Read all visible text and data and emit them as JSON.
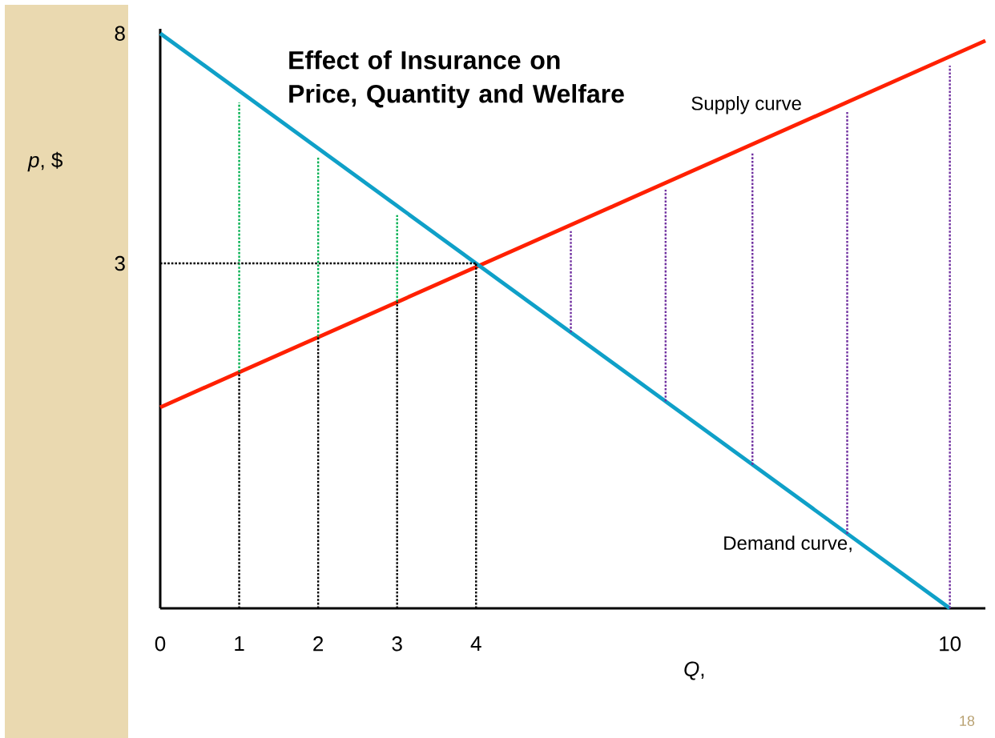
{
  "chart_data": {
    "type": "line",
    "title": "Effect of Insurance on Price, Quantity and Welfare",
    "xlabel": "*Q*,",
    "ylabel": "*p*, $",
    "xlim": [
      0,
      10.45
    ],
    "ylim": [
      -4.5,
      8.1
    ],
    "xticks": [
      0,
      1,
      2,
      3,
      4,
      10
    ],
    "yticks": [
      8,
      3
    ],
    "grid": false,
    "legend": false,
    "annotations": [
      "18"
    ],
    "series": [
      {
        "name": "Supply curve",
        "line_style": "solid",
        "color": "#ff2000",
        "x": [
          0,
          10.45
        ],
        "values": [
          -0.13,
          7.84
        ]
      },
      {
        "name": "Demand curve,",
        "line_style": "solid",
        "color": "#0fa0c8",
        "x": [
          0,
          10
        ],
        "values": [
          8,
          -4.5
        ]
      },
      {
        "line_style": "dotted",
        "color": "#000000",
        "x": [
          0,
          4
        ],
        "values": [
          3,
          3
        ]
      },
      {
        "line_style": "dotted",
        "color": "#000000",
        "x": [
          4,
          4
        ],
        "values": [
          -4.5,
          3
        ]
      },
      {
        "line_style": "dotted",
        "color": "#000000",
        "x": [
          1,
          1
        ],
        "values": [
          -4.5,
          0.64
        ]
      },
      {
        "line_style": "dotted",
        "color": "#000000",
        "x": [
          2,
          2
        ],
        "values": [
          -4.5,
          1.41
        ]
      },
      {
        "line_style": "dotted",
        "color": "#000000",
        "x": [
          3,
          3
        ],
        "values": [
          -4.5,
          2.17
        ]
      },
      {
        "line_style": "dotted",
        "color": "#00b050",
        "x": [
          1,
          1
        ],
        "values": [
          0.64,
          6.5
        ]
      },
      {
        "line_style": "dotted",
        "color": "#00b050",
        "x": [
          2,
          2
        ],
        "values": [
          1.41,
          5.3
        ]
      },
      {
        "line_style": "dotted",
        "color": "#00b050",
        "x": [
          3,
          3
        ],
        "values": [
          2.17,
          4.05
        ]
      },
      {
        "line_style": "dotted",
        "color": "#7030a0",
        "x": [
          5.2,
          5.2
        ],
        "values": [
          1.5,
          3.7
        ]
      },
      {
        "line_style": "dotted",
        "color": "#7030a0",
        "x": [
          6.4,
          6.4
        ],
        "values": [
          0,
          4.6
        ]
      },
      {
        "line_style": "dotted",
        "color": "#7030a0",
        "x": [
          7.5,
          7.5
        ],
        "values": [
          -1.38,
          5.4
        ]
      },
      {
        "line_style": "dotted",
        "color": "#7030a0",
        "x": [
          8.7,
          8.7
        ],
        "values": [
          -2.88,
          6.3
        ]
      },
      {
        "line_style": "dotted",
        "color": "#7030a0",
        "x": [
          10,
          10
        ],
        "values": [
          -4.5,
          7.3
        ]
      }
    ]
  }
}
